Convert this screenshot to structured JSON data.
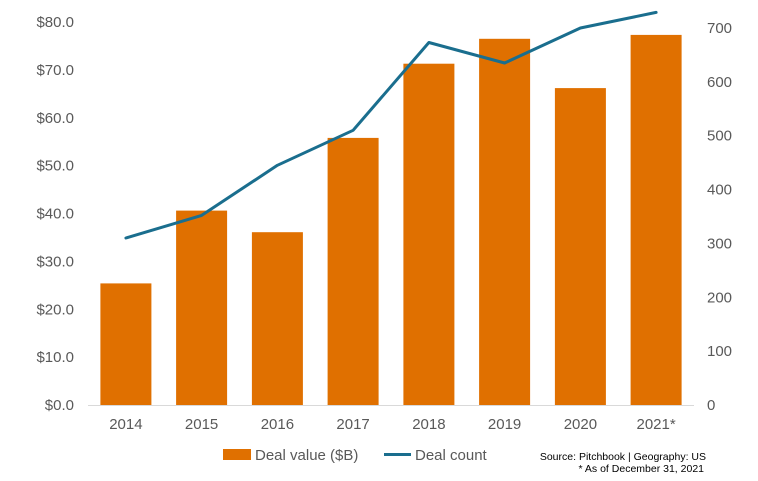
{
  "chart_data": {
    "type": "bar",
    "categories": [
      "2014",
      "2015",
      "2016",
      "2017",
      "2018",
      "2019",
      "2020",
      "2021*"
    ],
    "series": [
      {
        "name": "Deal value ($B)",
        "type": "bar",
        "axis": "left",
        "color": "#E07000",
        "values": [
          25.4,
          40.6,
          36.1,
          55.8,
          71.3,
          76.5,
          66.2,
          77.3
        ]
      },
      {
        "name": "Deal count",
        "type": "line",
        "axis": "right",
        "color": "#1A6E8E",
        "values": [
          310,
          352,
          445,
          510,
          673,
          635,
          700,
          729
        ]
      }
    ],
    "y_left": {
      "ylim": [
        0,
        80
      ],
      "ticks": [
        0,
        10,
        20,
        30,
        40,
        50,
        60,
        70,
        80
      ],
      "tick_labels": [
        "$0.0",
        "$10.0",
        "$20.0",
        "$30.0",
        "$40.0",
        "$50.0",
        "$60.0",
        "$70.0",
        "$80.0"
      ]
    },
    "y_right": {
      "ylim": [
        0,
        700
      ],
      "ticks": [
        0,
        100,
        200,
        300,
        400,
        500,
        600,
        700
      ],
      "tick_labels": [
        "0",
        "100",
        "200",
        "300",
        "400",
        "500",
        "600",
        "700"
      ]
    },
    "grid": false,
    "legend": {
      "placement": "bottom",
      "entries": [
        "Deal value ($B)",
        "Deal count"
      ]
    },
    "annotations": [
      "Source: Pitchbook | Geography: US",
      "* As of December 31, 2021"
    ]
  }
}
